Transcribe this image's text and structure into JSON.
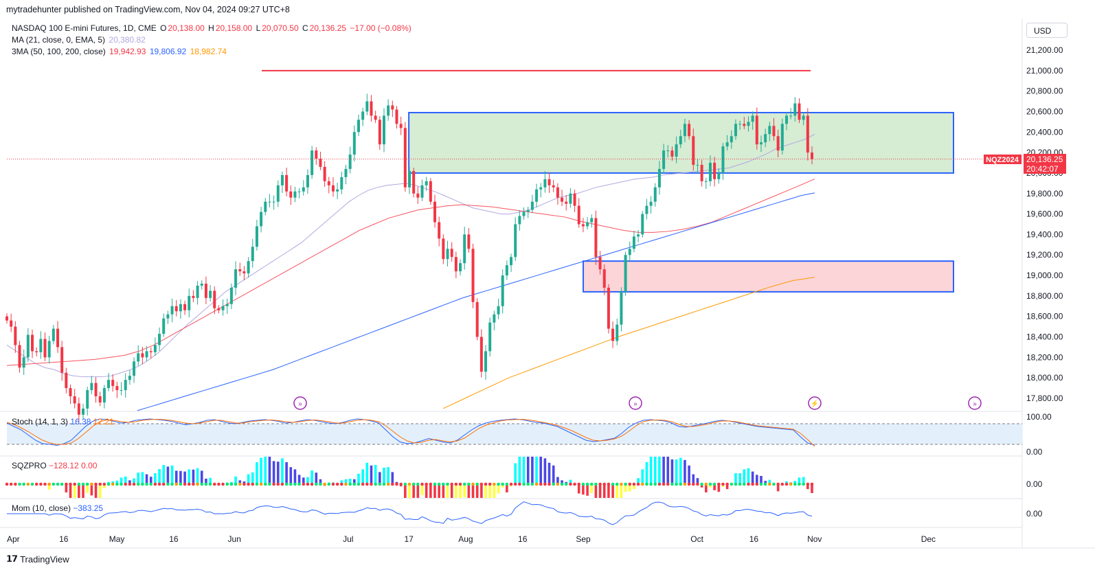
{
  "header": {
    "text": "mytradehunter published on TradingView.com, Nov 04, 2024 09:27 UTC+8"
  },
  "legend": {
    "symbol_line": "NASDAQ 100 E-mini Futures, 1D, CME",
    "ohlc": {
      "o_label": "O",
      "o": "20,138.00",
      "h_label": "H",
      "h": "20,158.00",
      "l_label": "L",
      "l": "20,070.50",
      "c_label": "C",
      "c": "20,136.25",
      "chg": "−17.00 (−0.08%)"
    },
    "ma_label": "MA (21, close, 0, EMA, 5)",
    "ma_value": "20,380.82",
    "ma3_label": "3MA (50, 100, 200, close)",
    "ma50": "19,942.93",
    "ma100": "19,806.92",
    "ma200": "18,982.74"
  },
  "currency_button": "USD",
  "price_tag": {
    "symbol": "NQZ2024",
    "price": "20,136.25",
    "countdown": "20:42:07"
  },
  "stoch": {
    "label": "Stoch (14, 1, 3)",
    "k": "16.38",
    "d": "12.21",
    "axis": [
      "100.00",
      "0.00"
    ]
  },
  "sqzpro": {
    "label": "SQZPRO",
    "v1": "−128.12",
    "v2": "0.00",
    "axis": [
      "0.00"
    ]
  },
  "mom": {
    "label": "Mom (10, close)",
    "value": "−383.25",
    "axis": [
      "0.00"
    ]
  },
  "footer": {
    "brand": "TradingView"
  },
  "colors": {
    "up": "#22ab94",
    "down": "#f23645",
    "ma21": "#b2a7e0",
    "ma50": "#f7525f",
    "ma100": "#2962ff",
    "ma200": "#ff9800",
    "zone_top": "#d6ecd3",
    "zone_bot": "#fbd5d8",
    "zone_border": "#2962ff",
    "resist": "#f23645"
  },
  "chart_data": {
    "type": "candlestick",
    "title": "NASDAQ 100 E-mini Futures, 1D, CME",
    "ylim": [
      17700,
      21450
    ],
    "y_ticks": [
      "21,200.00",
      "21,000.00",
      "20,800.00",
      "20,600.00",
      "20,400.00",
      "20,200.00",
      "20,000.00",
      "19,800.00",
      "19,600.00",
      "19,400.00",
      "19,200.00",
      "19,000.00",
      "18,800.00",
      "18,600.00",
      "18,400.00",
      "18,200.00",
      "18,000.00",
      "17,800.00"
    ],
    "x_ticks": [
      "Apr",
      "16",
      "May",
      "16",
      "Jun",
      "Jul",
      "17",
      "Aug",
      "16",
      "Sep",
      "Oct",
      "16",
      "Nov",
      "Dec"
    ],
    "tick_days": [
      0,
      15,
      29,
      44,
      60,
      90,
      106,
      121,
      136,
      152,
      182,
      197,
      213,
      243
    ],
    "resistance": 21000,
    "zones": [
      {
        "name": "supply-demand-range",
        "top": 20590,
        "bottom": 20000,
        "start_day": 106
      },
      {
        "name": "support-zone",
        "top": 19140,
        "bottom": 18840,
        "start_day": 152
      }
    ],
    "closes": [
      18560,
      18500,
      18320,
      18100,
      18200,
      18420,
      18260,
      18250,
      18380,
      18200,
      18360,
      18480,
      18300,
      18050,
      17900,
      17820,
      17750,
      17640,
      17700,
      17880,
      17950,
      17820,
      17760,
      17900,
      17980,
      17920,
      17880,
      17880,
      17980,
      18020,
      18160,
      18240,
      18200,
      18260,
      18250,
      18320,
      18430,
      18580,
      18620,
      18700,
      18650,
      18720,
      18660,
      18800,
      18780,
      18900,
      18920,
      18780,
      18850,
      18680,
      18660,
      18700,
      18720,
      18880,
      19060,
      19040,
      19020,
      19140,
      19280,
      19480,
      19620,
      19720,
      19720,
      19720,
      19880,
      19980,
      19820,
      19760,
      19820,
      19820,
      19860,
      19980,
      20220,
      20140,
      20060,
      19920,
      19880,
      19820,
      19840,
      19960,
      20040,
      20180,
      20400,
      20520,
      20600,
      20700,
      20560,
      20520,
      20280,
      20560,
      20660,
      20620,
      20480,
      20440,
      19860,
      20020,
      19800,
      19760,
      19880,
      19920,
      19720,
      19520,
      19360,
      19160,
      19260,
      19180,
      19040,
      19120,
      19400,
      19260,
      18740,
      18400,
      18060,
      18260,
      18540,
      18620,
      18700,
      19000,
      19100,
      19180,
      19500,
      19580,
      19620,
      19640,
      19720,
      19840,
      19860,
      19940,
      19880,
      19860,
      19760,
      19720,
      19700,
      19800,
      19680,
      19500,
      19480,
      19520,
      19560,
      19180,
      19060,
      18880,
      18480,
      18360,
      18520,
      18840,
      19200,
      19260,
      19380,
      19400,
      19600,
      19680,
      19720,
      19860,
      20040,
      20220,
      20220,
      20160,
      20280,
      20360,
      20480,
      20360,
      20080,
      20080,
      19920,
      19920,
      20100,
      19940,
      20000,
      20260,
      20300,
      20360,
      20480,
      20480,
      20460,
      20500,
      20560,
      20280,
      20300,
      20380,
      20460,
      20360,
      20220,
      20480,
      20560,
      20560,
      20680,
      20520,
      20560,
      20200,
      20136
    ],
    "ma21": [
      18320,
      18260,
      18200,
      18140,
      18100,
      18080,
      18040,
      18020,
      18010,
      18010,
      18010,
      18020,
      18050,
      18080,
      18120,
      18180,
      18250,
      18340,
      18430,
      18520,
      18600,
      18680,
      18760,
      18840,
      18900,
      18960,
      19020,
      19080,
      19140,
      19200,
      19260,
      19320,
      19400,
      19480,
      19560,
      19640,
      19720,
      19780,
      19830,
      19860,
      19880,
      19890,
      19900,
      19880,
      19850,
      19820,
      19780,
      19740,
      19700,
      19660,
      19640,
      19620,
      19600,
      19600,
      19620,
      19640,
      19680,
      19720,
      19760,
      19780,
      19800,
      19830,
      19860,
      19880,
      19900,
      19920,
      19940,
      19950,
      19960,
      19980,
      19990,
      20000,
      20010,
      20020,
      20030,
      20040,
      20050,
      20080,
      20110,
      20150,
      20190,
      20240,
      20270,
      20300,
      20330,
      20380
    ],
    "ma50": [
      18120,
      18130,
      18140,
      18150,
      18160,
      18170,
      18180,
      18200,
      18220,
      18260,
      18320,
      18400,
      18480,
      18560,
      18640,
      18720,
      18800,
      18880,
      18960,
      19040,
      19120,
      19200,
      19280,
      19360,
      19440,
      19500,
      19560,
      19600,
      19640,
      19660,
      19680,
      19690,
      19680,
      19670,
      19650,
      19630,
      19610,
      19590,
      19570,
      19530,
      19500,
      19470,
      19440,
      19420,
      19420,
      19430,
      19450,
      19480,
      19520,
      19580,
      19640,
      19700,
      19760,
      19820,
      19880,
      19942
    ],
    "ma100": [
      17680,
      17720,
      17760,
      17800,
      17840,
      17880,
      17920,
      17960,
      18000,
      18040,
      18080,
      18130,
      18180,
      18230,
      18280,
      18330,
      18380,
      18430,
      18480,
      18530,
      18580,
      18630,
      18680,
      18730,
      18780,
      18820,
      18860,
      18900,
      18940,
      18980,
      19020,
      19060,
      19100,
      19140,
      19180,
      19220,
      19260,
      19300,
      19340,
      19380,
      19420,
      19460,
      19500,
      19540,
      19580,
      19620,
      19660,
      19700,
      19740,
      19780,
      19806
    ],
    "ma200": [
      17700,
      17800,
      17900,
      18000,
      18080,
      18160,
      18240,
      18320,
      18400,
      18470,
      18540,
      18610,
      18680,
      18750,
      18820,
      18890,
      18950,
      18982
    ],
    "stoch_k": [
      80,
      70,
      60,
      45,
      30,
      20,
      18,
      15,
      20,
      30,
      50,
      70,
      85,
      92,
      90,
      85,
      80,
      82,
      88,
      90,
      92,
      90,
      88,
      85,
      80,
      75,
      78,
      82,
      88,
      90,
      85,
      80,
      78,
      82,
      86,
      88,
      90,
      88,
      85,
      80,
      82,
      86,
      90,
      88,
      84,
      80,
      78,
      82,
      88,
      92,
      90,
      86,
      80,
      60,
      40,
      25,
      20,
      22,
      28,
      35,
      30,
      25,
      22,
      30,
      45,
      60,
      72,
      80,
      85,
      88,
      90,
      92,
      90,
      86,
      82,
      80,
      75,
      70,
      60,
      50,
      40,
      30,
      26,
      28,
      32,
      36,
      50,
      68,
      80,
      88,
      90,
      88,
      86,
      80,
      70,
      68,
      72,
      76,
      80,
      85,
      88,
      86,
      82,
      78,
      74,
      70,
      68,
      66,
      64,
      62,
      60,
      40,
      22,
      16
    ],
    "stoch_d": [
      82,
      76,
      66,
      55,
      42,
      30,
      22,
      18,
      18,
      22,
      35,
      52,
      70,
      84,
      89,
      88,
      84,
      82,
      84,
      88,
      90,
      91,
      90,
      88,
      84,
      80,
      78,
      80,
      84,
      88,
      88,
      84,
      80,
      80,
      84,
      86,
      88,
      89,
      87,
      84,
      82,
      84,
      87,
      89,
      87,
      84,
      80,
      80,
      84,
      88,
      90,
      88,
      84,
      72,
      56,
      40,
      28,
      22,
      24,
      30,
      32,
      28,
      25,
      28,
      36,
      50,
      64,
      74,
      80,
      86,
      89,
      90,
      91,
      89,
      86,
      82,
      78,
      73,
      66,
      58,
      48,
      38,
      30,
      28,
      30,
      34,
      42,
      56,
      72,
      84,
      88,
      89,
      88,
      84,
      76,
      70,
      70,
      73,
      77,
      82,
      86,
      86,
      84,
      80,
      76,
      72,
      70,
      68,
      66,
      64,
      62,
      50,
      32,
      12
    ]
  }
}
